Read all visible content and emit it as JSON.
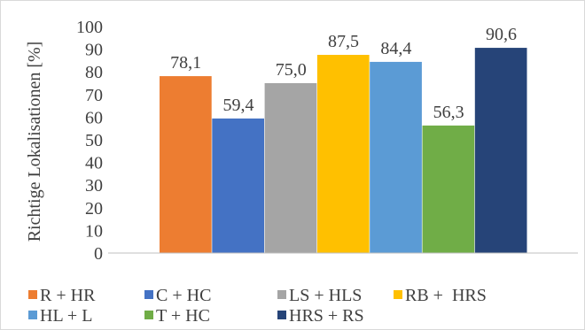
{
  "chart_data": {
    "type": "bar",
    "title": "",
    "xlabel": "",
    "ylabel": "Richtige Lokalisationen [%]",
    "ylim": [
      0,
      100
    ],
    "yticks": [
      0,
      10,
      20,
      30,
      40,
      50,
      60,
      70,
      80,
      90,
      100
    ],
    "grid": false,
    "legend_position": "bottom",
    "series": [
      {
        "name": "R + HR",
        "value": 78.1,
        "label": "78,1",
        "color": "#ED7D31"
      },
      {
        "name": "C + HC",
        "value": 59.4,
        "label": "59,4",
        "color": "#4472C4"
      },
      {
        "name": "LS + HLS",
        "value": 75.0,
        "label": "75,0",
        "color": "#A5A5A5"
      },
      {
        "name": "RB +  HRS",
        "value": 87.5,
        "label": "87,5",
        "color": "#FFC000"
      },
      {
        "name": "HL + L",
        "value": 84.4,
        "label": "84,4",
        "color": "#5B9BD5"
      },
      {
        "name": "T + HC",
        "value": 56.3,
        "label": "56,3",
        "color": "#70AD47"
      },
      {
        "name": "HRS + RS",
        "value": 90.6,
        "label": "90,6",
        "color": "#264478"
      }
    ]
  }
}
